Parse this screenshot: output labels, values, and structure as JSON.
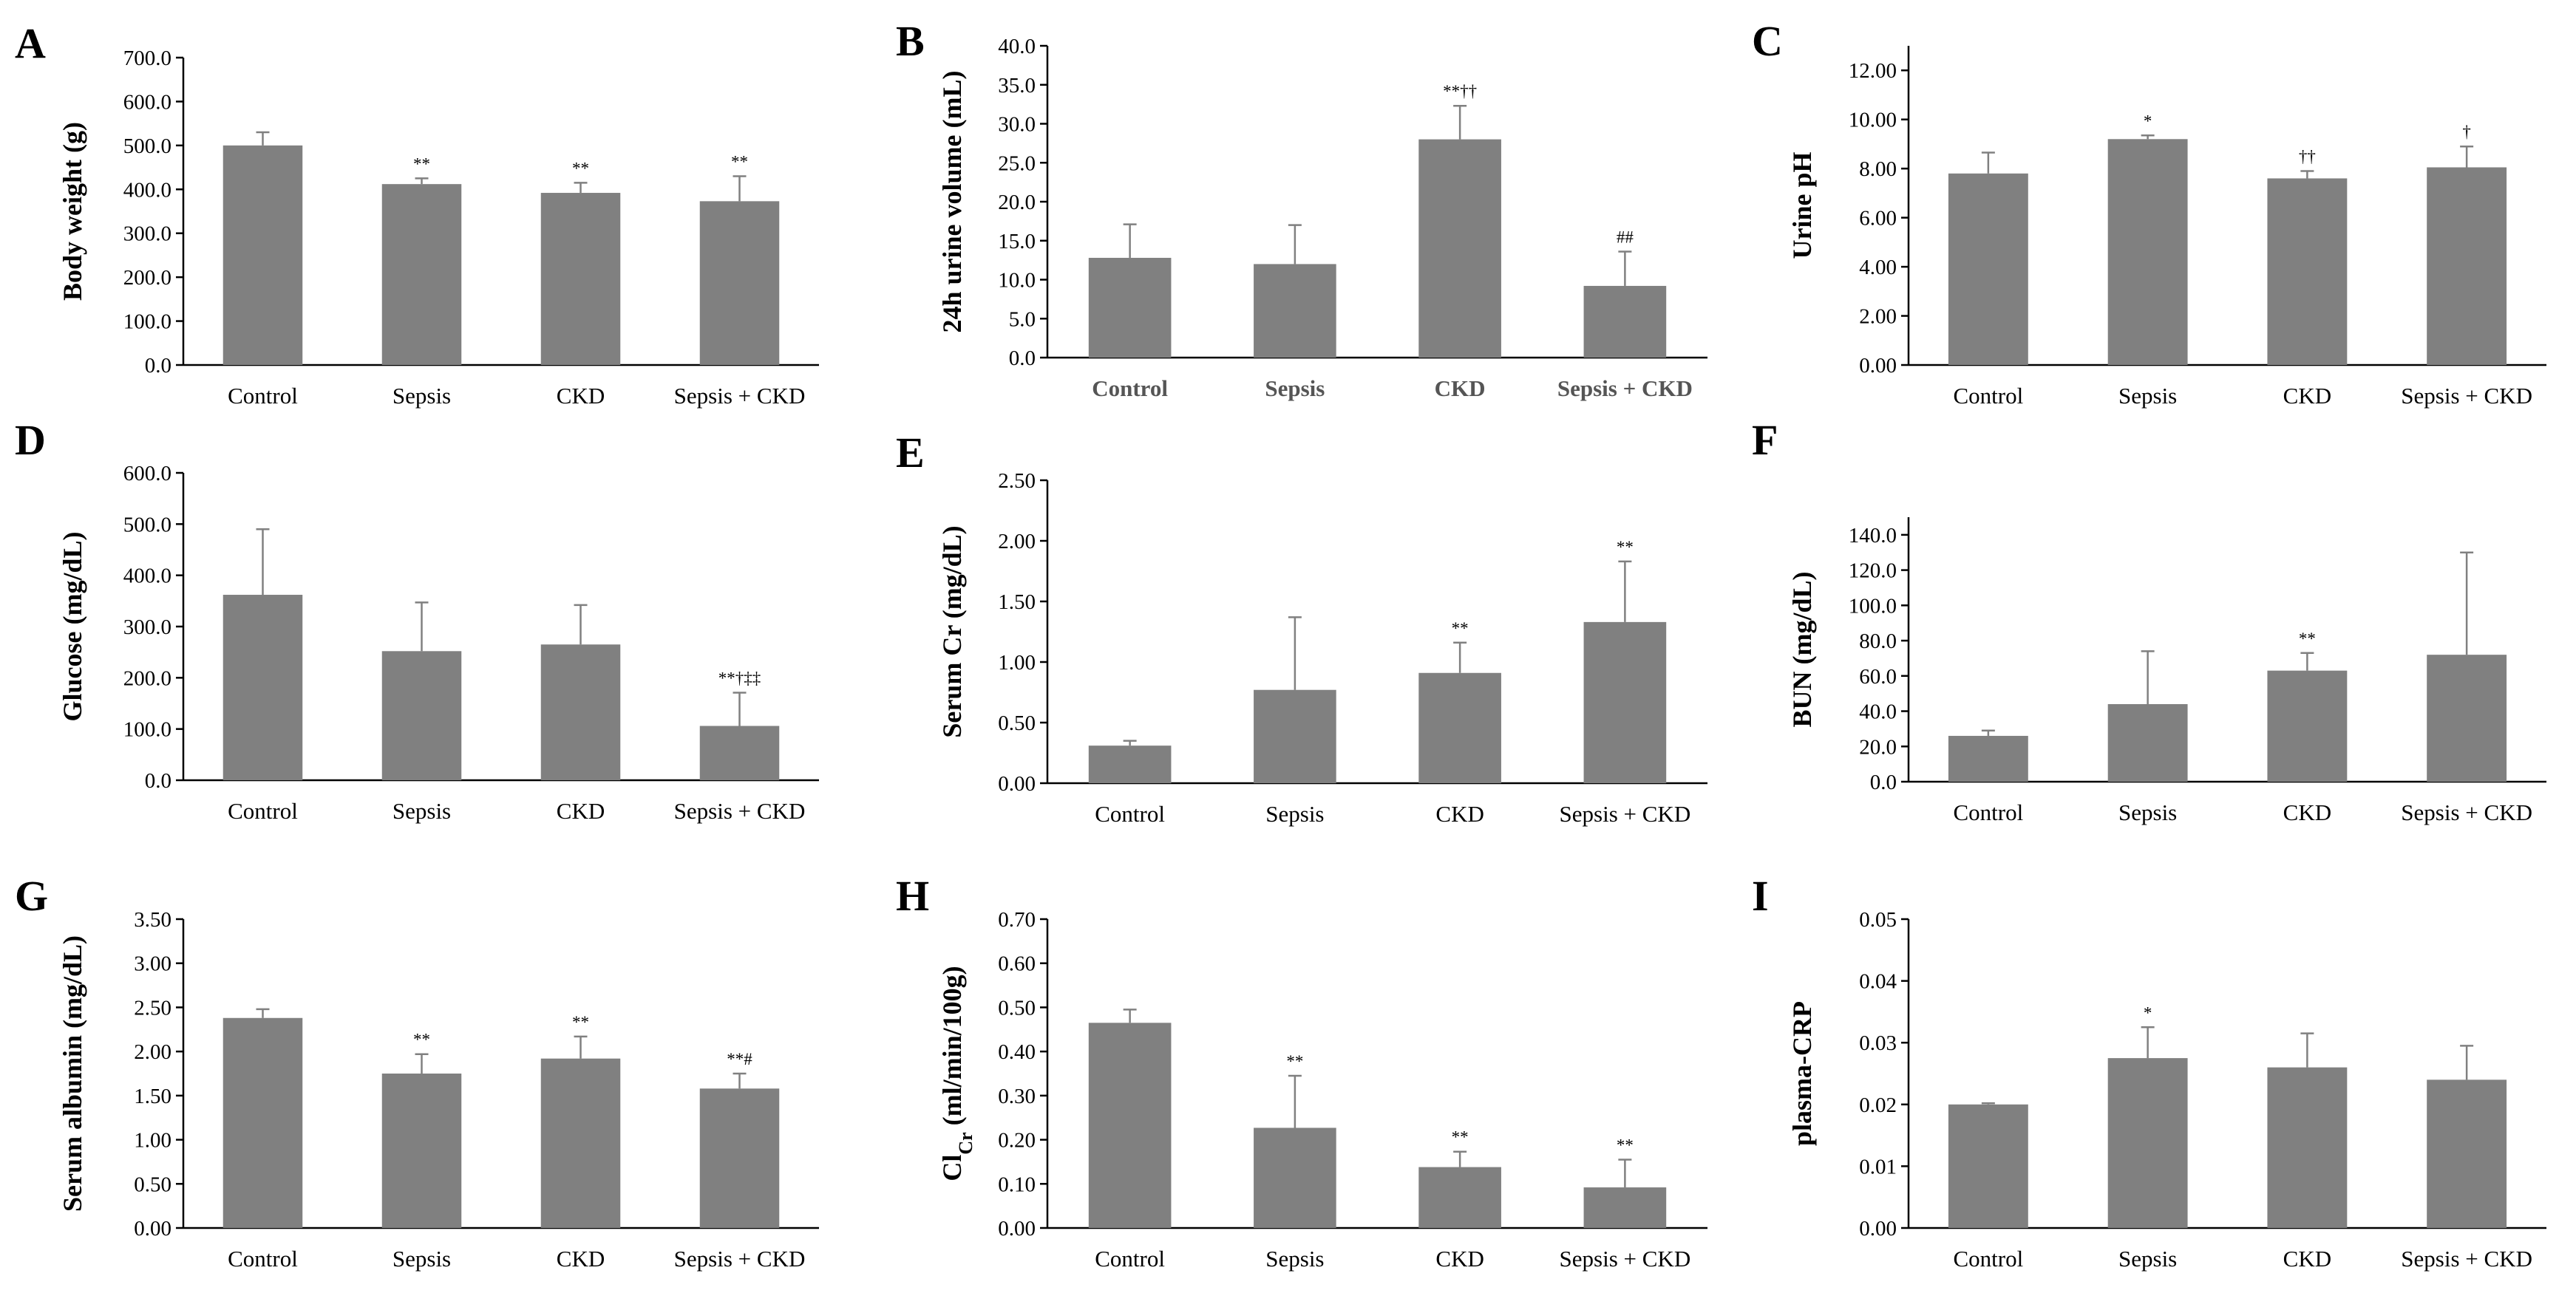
{
  "figure_title": "",
  "colors": {
    "bar": "#808080",
    "axis": "#000000",
    "text": "#000000",
    "bold_category": "#555555"
  },
  "chart_data": [
    {
      "panel": "A",
      "type": "bar",
      "ylabel": "Body weight (g)",
      "categories": [
        "Control",
        "Sepsis",
        "CKD",
        "Sepsis + CKD"
      ],
      "values": [
        500,
        412,
        392,
        373
      ],
      "errors": [
        30,
        13,
        23,
        57
      ],
      "significance": [
        "",
        "**",
        "**",
        "**"
      ],
      "ylim": [
        0,
        700
      ],
      "yticks": [
        0,
        100,
        200,
        300,
        400,
        500,
        600,
        700
      ],
      "decimals": 1,
      "bold_categories": false
    },
    {
      "panel": "B",
      "type": "bar",
      "ylabel": "24h urine volume (mL)",
      "categories": [
        "Control",
        "Sepsis",
        "CKD",
        "Sepsis + CKD"
      ],
      "values": [
        12.8,
        12.0,
        28.0,
        9.2
      ],
      "errors": [
        4.3,
        5.0,
        4.3,
        4.4
      ],
      "significance": [
        "",
        "",
        "**††",
        "##"
      ],
      "ylim": [
        0,
        40
      ],
      "yticks": [
        0,
        5,
        10,
        15,
        20,
        25,
        30,
        35,
        40
      ],
      "decimals": 1,
      "bold_categories": true
    },
    {
      "panel": "C",
      "type": "bar",
      "ylabel": "Urine pH",
      "categories": [
        "Control",
        "Sepsis",
        "CKD",
        "Sepsis + CKD"
      ],
      "values": [
        7.8,
        9.2,
        7.6,
        8.05
      ],
      "errors": [
        0.85,
        0.15,
        0.3,
        0.85
      ],
      "significance": [
        "",
        "*",
        "††",
        "†"
      ],
      "ylim": [
        0,
        13
      ],
      "yticks": [
        0,
        2,
        4,
        6,
        8,
        10,
        12
      ],
      "decimals": 2,
      "bold_categories": false
    },
    {
      "panel": "D",
      "type": "bar",
      "ylabel": "Glucose (mg/dL)",
      "categories": [
        "Control",
        "Sepsis",
        "CKD",
        "Sepsis + CKD"
      ],
      "values": [
        362,
        252,
        265,
        106
      ],
      "errors": [
        128,
        95,
        77,
        65
      ],
      "significance": [
        "",
        "",
        "",
        "**†‡‡"
      ],
      "ylim": [
        0,
        600
      ],
      "yticks": [
        0,
        100,
        200,
        300,
        400,
        500,
        600
      ],
      "decimals": 1,
      "bold_categories": false
    },
    {
      "panel": "E",
      "type": "bar",
      "ylabel": "Serum Cr (mg/dL)",
      "categories": [
        "Control",
        "Sepsis",
        "CKD",
        "Sepsis + CKD"
      ],
      "values": [
        0.31,
        0.77,
        0.91,
        1.33
      ],
      "errors": [
        0.04,
        0.6,
        0.25,
        0.5
      ],
      "significance": [
        "",
        "",
        "**",
        "**"
      ],
      "ylim": [
        0,
        2.5
      ],
      "yticks": [
        0,
        0.5,
        1.0,
        1.5,
        2.0,
        2.5
      ],
      "decimals": 2,
      "bold_categories": false
    },
    {
      "panel": "F",
      "type": "bar",
      "ylabel": "BUN (mg/dL)",
      "categories": [
        "Control",
        "Sepsis",
        "CKD",
        "Sepsis + CKD"
      ],
      "values": [
        26,
        44,
        63,
        72
      ],
      "errors": [
        3,
        30,
        10,
        58
      ],
      "significance": [
        "",
        "",
        "**",
        ""
      ],
      "ylim": [
        0,
        150
      ],
      "yticks": [
        0,
        20,
        40,
        60,
        80,
        100,
        120,
        140
      ],
      "decimals": 1,
      "bold_categories": false
    },
    {
      "panel": "G",
      "type": "bar",
      "ylabel": "Serum albumin (mg/dL)",
      "categories": [
        "Control",
        "Sepsis",
        "CKD",
        "Sepsis + CKD"
      ],
      "values": [
        2.38,
        1.75,
        1.92,
        1.58
      ],
      "errors": [
        0.1,
        0.22,
        0.25,
        0.17
      ],
      "significance": [
        "",
        "**",
        "**",
        "**#"
      ],
      "ylim": [
        0,
        3.5
      ],
      "yticks": [
        0,
        0.5,
        1.0,
        1.5,
        2.0,
        2.5,
        3.0,
        3.5
      ],
      "decimals": 2,
      "bold_categories": false
    },
    {
      "panel": "H",
      "type": "bar",
      "ylabel": "Cl",
      "ylabel_sub": "Cr",
      "ylabel_rest": " (ml/min/100g)",
      "categories": [
        "Control",
        "Sepsis",
        "CKD",
        "Sepsis + CKD"
      ],
      "values": [
        0.465,
        0.227,
        0.138,
        0.092
      ],
      "errors": [
        0.03,
        0.118,
        0.035,
        0.063
      ],
      "significance": [
        "",
        "**",
        "**",
        "**"
      ],
      "ylim": [
        0,
        0.7
      ],
      "yticks": [
        0,
        0.1,
        0.2,
        0.3,
        0.4,
        0.5,
        0.6,
        0.7
      ],
      "decimals": 2,
      "bold_categories": false
    },
    {
      "panel": "I",
      "type": "bar",
      "ylabel": "plasma-CRP",
      "categories": [
        "Control",
        "Sepsis",
        "CKD",
        "Sepsis + CKD"
      ],
      "values": [
        0.02,
        0.0275,
        0.026,
        0.024
      ],
      "errors": [
        0.0002,
        0.005,
        0.0055,
        0.0055
      ],
      "significance": [
        "",
        "*",
        "",
        ""
      ],
      "ylim": [
        0,
        0.05
      ],
      "yticks": [
        0,
        0.01,
        0.02,
        0.03,
        0.04,
        0.05
      ],
      "decimals": 2,
      "bold_categories": false
    }
  ]
}
